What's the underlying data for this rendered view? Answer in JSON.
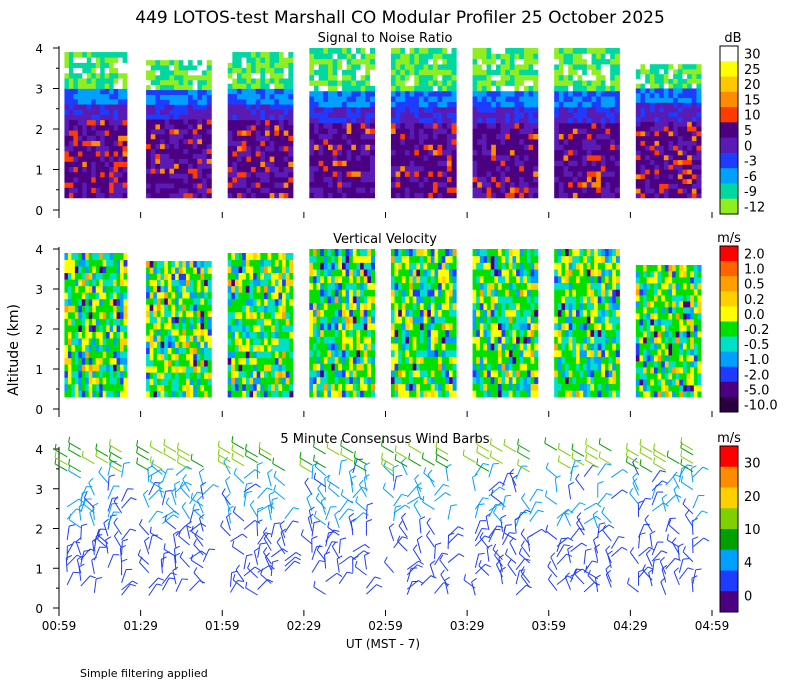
{
  "title": "449 LOTOS-test Marshall CO Modular Profiler 25 October 2025",
  "ylabel": "Altitude (km)",
  "xlabel": "UT  (MST - 7)",
  "note": "Simple filtering applied",
  "colors": {
    "axis": "#000000",
    "background": "#ffffff"
  },
  "chart_data": [
    {
      "type": "heatmap",
      "title": "Signal to Noise Ratio",
      "unit": "dB",
      "x_ticks": [
        "00:59",
        "01:29",
        "01:59",
        "02:29",
        "02:59",
        "03:29",
        "03:59",
        "04:29",
        "04:59"
      ],
      "y_ticks": [
        0,
        1,
        2,
        3,
        4
      ],
      "ylim": [
        0,
        4
      ],
      "colorbar": {
        "labels": [
          "30",
          "25",
          "20",
          "15",
          "10",
          "5",
          "0",
          "-3",
          "-6",
          "-9",
          "-12"
        ],
        "colors": [
          "#ffffff",
          "#ffff00",
          "#ffc800",
          "#ff8c00",
          "#ff3c00",
          "#4b0082",
          "#5a1ab4",
          "#1e3cff",
          "#00a0ff",
          "#00d8a0",
          "#90ee20"
        ]
      },
      "segments": [
        {
          "start": "01:01",
          "end": "01:24",
          "top_km": 3.9
        },
        {
          "start": "01:31",
          "end": "01:55",
          "top_km": 3.7
        },
        {
          "start": "02:01",
          "end": "02:25",
          "top_km": 3.9
        },
        {
          "start": "02:31",
          "end": "02:55",
          "top_km": 4.0
        },
        {
          "start": "03:01",
          "end": "03:25",
          "top_km": 4.0
        },
        {
          "start": "03:31",
          "end": "03:55",
          "top_km": 4.0
        },
        {
          "start": "04:01",
          "end": "04:25",
          "top_km": 4.0
        },
        {
          "start": "04:31",
          "end": "04:55",
          "top_km": 3.6
        }
      ],
      "layers_km": [
        {
          "from": 3.0,
          "to": 4.0,
          "value_db": -12
        },
        {
          "from": 2.6,
          "to": 3.0,
          "value_db": -3
        },
        {
          "from": 2.2,
          "to": 2.6,
          "value_db": 0
        },
        {
          "from": 0.3,
          "to": 2.2,
          "value_db": 5
        }
      ]
    },
    {
      "type": "heatmap",
      "title": "Vertical Velocity",
      "unit": "m/s",
      "x_ticks": [
        "00:59",
        "01:29",
        "01:59",
        "02:29",
        "02:59",
        "03:29",
        "03:59",
        "04:29",
        "04:59"
      ],
      "y_ticks": [
        0,
        1,
        2,
        3,
        4
      ],
      "ylim": [
        0,
        4
      ],
      "colorbar": {
        "labels": [
          "2.0",
          "1.0",
          "0.5",
          "0.2",
          "0.0",
          "-0.2",
          "-0.5",
          "-1.0",
          "-2.0",
          "-5.0",
          "-10.0"
        ],
        "colors": [
          "#ff0000",
          "#ff6400",
          "#ffa000",
          "#ffd000",
          "#ffff00",
          "#00e000",
          "#00e0c8",
          "#00a0ff",
          "#1e3cff",
          "#4b0082",
          "#2a0040"
        ]
      },
      "value_range_ms": [
        -1.0,
        1.0
      ]
    },
    {
      "type": "wind_barbs",
      "title": "5 Minute Consensus Wind Barbs",
      "unit": "m/s",
      "x_ticks": [
        "00:59",
        "01:29",
        "01:59",
        "02:29",
        "02:59",
        "03:29",
        "03:59",
        "04:29",
        "04:59"
      ],
      "y_ticks": [
        0,
        1,
        2,
        3,
        4
      ],
      "ylim": [
        0,
        4
      ],
      "colorbar": {
        "labels": [
          "30",
          "20",
          "10",
          "4",
          "0"
        ],
        "colors": [
          "#ff0000",
          "#ff8c00",
          "#ffd000",
          "#80d000",
          "#00a000",
          "#00a0ff",
          "#1e3cff",
          "#4b0082"
        ]
      },
      "speed_by_altitude_km": [
        {
          "from": 0.3,
          "to": 2.0,
          "speed_ms": 3
        },
        {
          "from": 2.0,
          "to": 3.4,
          "speed_ms": 5
        },
        {
          "from": 3.4,
          "to": 4.0,
          "speed_ms": 10
        }
      ]
    }
  ]
}
